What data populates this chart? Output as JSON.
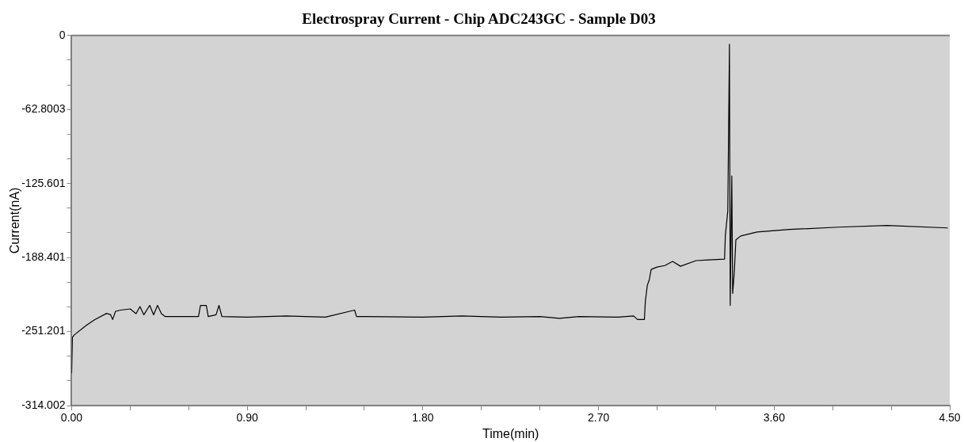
{
  "chart_data": {
    "type": "line",
    "title": "Electrospray Current - Chip ADC243GC - Sample D03",
    "xlabel": "Time(min)",
    "ylabel": "Current(nA)",
    "xlim": [
      0,
      4.5
    ],
    "ylim": [
      -314.002,
      0
    ],
    "xticks": [
      {
        "value": 0,
        "label": "0.00"
      },
      {
        "value": 0.3,
        "label": null
      },
      {
        "value": 0.6,
        "label": null
      },
      {
        "value": 0.9,
        "label": "0.90"
      },
      {
        "value": 1.2,
        "label": null
      },
      {
        "value": 1.5,
        "label": null
      },
      {
        "value": 1.8,
        "label": "1.80"
      },
      {
        "value": 2.1,
        "label": null
      },
      {
        "value": 2.4,
        "label": null
      },
      {
        "value": 2.7,
        "label": "2.70"
      },
      {
        "value": 3.0,
        "label": null
      },
      {
        "value": 3.3,
        "label": null
      },
      {
        "value": 3.6,
        "label": "3.60"
      },
      {
        "value": 3.9,
        "label": null
      },
      {
        "value": 4.2,
        "label": null
      },
      {
        "value": 4.5,
        "label": "4.50"
      }
    ],
    "yticks": [
      0,
      {
        "value": -20.9335,
        "label": null
      },
      {
        "value": -41.8669,
        "label": null
      },
      -62.8003,
      {
        "value": -83.7337,
        "label": null
      },
      {
        "value": -104.667,
        "label": null
      },
      -125.601,
      {
        "value": -146.534,
        "label": null
      },
      {
        "value": -167.468,
        "label": null
      },
      -188.401,
      {
        "value": -209.335,
        "label": null
      },
      {
        "value": -230.268,
        "label": null
      },
      -251.201,
      {
        "value": -272.135,
        "label": null
      },
      {
        "value": -293.068,
        "label": null
      },
      -314.002
    ],
    "grid": false,
    "legend": false,
    "marker": "none",
    "line_style": "solid",
    "series": [
      {
        "color": "#000000",
        "x": [
          0,
          0.004,
          0.013,
          0.075,
          0.117,
          0.179,
          0.2,
          0.21,
          0.225,
          0.25,
          0.3,
          0.33,
          0.35,
          0.37,
          0.4,
          0.42,
          0.44,
          0.46,
          0.48,
          0.6,
          0.65,
          0.66,
          0.69,
          0.7,
          0.74,
          0.755,
          0.77,
          0.9,
          1.1,
          1.3,
          1.45,
          1.46,
          1.5,
          1.8,
          2.0,
          2.2,
          2.4,
          2.5,
          2.6,
          2.8,
          2.88,
          2.9,
          2.935,
          2.94,
          2.95,
          2.96,
          2.97,
          3.0,
          3.04,
          3.08,
          3.12,
          3.2,
          3.2625,
          3.346,
          3.35,
          3.3625,
          3.367,
          3.371,
          3.375,
          3.383,
          3.3875,
          3.396,
          3.404,
          3.429,
          3.5125,
          3.679,
          3.929,
          4.179,
          4.49
        ],
        "values": [
          -286.6,
          -256.1,
          -254.1,
          -245.9,
          -241.2,
          -235.8,
          -237,
          -241,
          -234,
          -233,
          -232,
          -236,
          -230,
          -237,
          -229,
          -237,
          -229,
          -236,
          -238.5,
          -238.5,
          -238.5,
          -229,
          -229,
          -238.5,
          -237,
          -229,
          -238.5,
          -239,
          -238,
          -239,
          -233,
          -238.5,
          -238.5,
          -239,
          -238,
          -239,
          -238.5,
          -240,
          -238.5,
          -239,
          -238,
          -241,
          -241,
          -225.6,
          -212.1,
          -207.3,
          -198.5,
          -196.5,
          -195.2,
          -191.7,
          -195.8,
          -191,
          -190.4,
          -189.7,
          -169.4,
          -149.1,
          -76.6,
          -7.5,
          -229,
          -119.2,
          -218.8,
          -200.5,
          -173.4,
          -170.1,
          -166.7,
          -164.6,
          -162.6,
          -161.2,
          -163.3
        ]
      }
    ]
  }
}
